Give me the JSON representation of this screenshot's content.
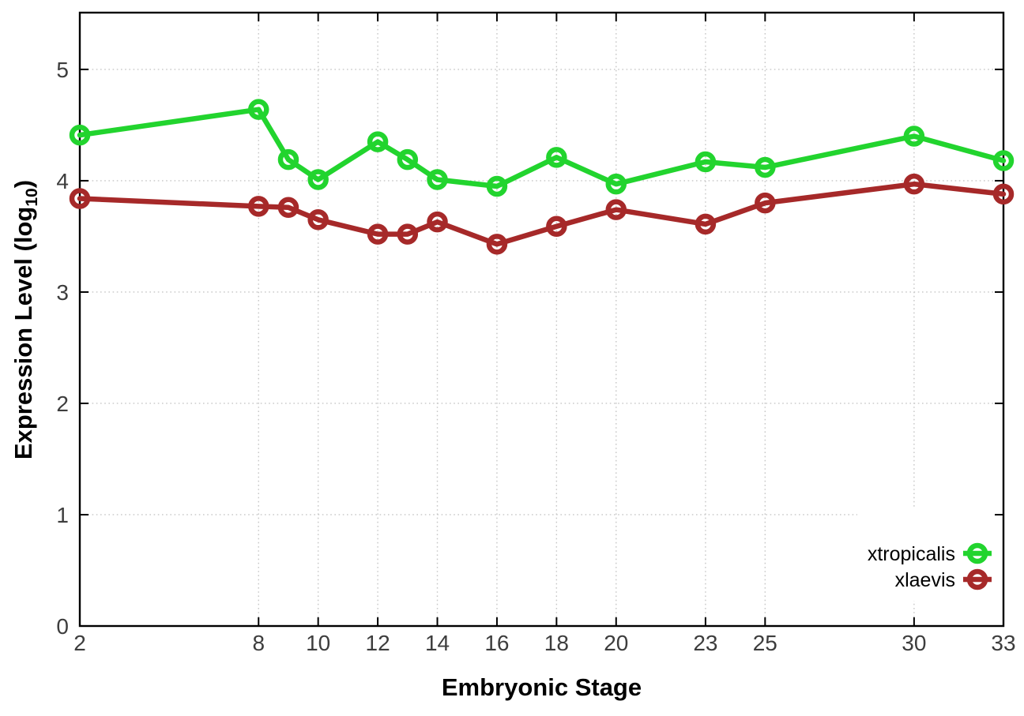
{
  "chart_data": {
    "type": "line",
    "title": "",
    "xlabel": "Embryonic Stage",
    "ylabel": "Expression Level (log10)",
    "ylabel_parts": {
      "pre": "Expression Level (log",
      "sub": "10",
      "post": ")"
    },
    "x": [
      2,
      8,
      9,
      10,
      12,
      13,
      14,
      16,
      18,
      20,
      23,
      25,
      30,
      33
    ],
    "series": [
      {
        "name": "xtropicalis",
        "color": "#22d42e",
        "values": [
          4.41,
          4.64,
          4.19,
          4.01,
          4.35,
          4.19,
          4.01,
          3.95,
          4.21,
          3.97,
          4.17,
          4.12,
          4.4,
          4.18
        ]
      },
      {
        "name": "xlaevis",
        "color": "#a62929",
        "values": [
          3.84,
          3.77,
          3.76,
          3.65,
          3.52,
          3.52,
          3.63,
          3.43,
          3.59,
          3.74,
          3.61,
          3.8,
          3.97,
          3.88
        ]
      }
    ],
    "xlim": [
      2,
      33
    ],
    "ylim": [
      0,
      5.51
    ],
    "xticks": [
      2,
      8,
      10,
      12,
      14,
      16,
      18,
      20,
      23,
      25,
      30,
      33
    ],
    "yticks": [
      0,
      1,
      2,
      3,
      4,
      5
    ],
    "grid": true,
    "grid_style": "dotted",
    "legend_position": "bottom-right",
    "legend_entries": [
      "xtropicalis",
      "xlaevis"
    ],
    "marker": "open-circle",
    "colors": {
      "background": "#ffffff",
      "axis": "#000000",
      "grid": "#c6c6c6",
      "tick_labels": "#3d3d3d",
      "axis_titles": "#000000",
      "legend_text": "#000000"
    }
  }
}
